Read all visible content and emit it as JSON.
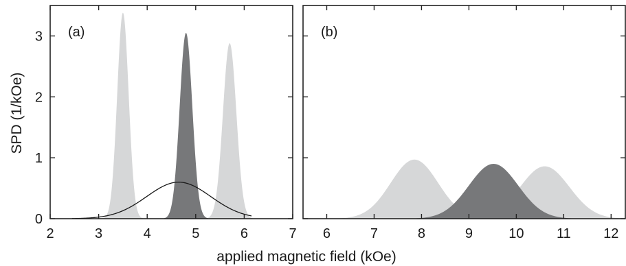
{
  "chart_data": {
    "type": "area",
    "xlabel": "applied magnetic field (kOe)",
    "ylabel": "SPD (1/kOe)",
    "colors": {
      "light": "#d6d7d8",
      "dark": "#77787a",
      "line": "#1a1a1a"
    },
    "panels": [
      {
        "label": "(a)",
        "xlim": [
          2,
          7
        ],
        "ylim": [
          0,
          3.5
        ],
        "xticks": [
          "2",
          "3",
          "4",
          "5",
          "6",
          "7"
        ],
        "yticks": [
          "0",
          "1",
          "2",
          "3"
        ],
        "series": [
          {
            "style": "fill-light",
            "center": 3.5,
            "sigma": 0.118,
            "peak": 3.38
          },
          {
            "style": "fill-light",
            "center": 5.7,
            "sigma": 0.138,
            "peak": 2.88
          },
          {
            "style": "fill-dark",
            "center": 4.8,
            "sigma": 0.13,
            "peak": 3.05
          },
          {
            "style": "line",
            "center": 4.65,
            "sigma": 0.66,
            "peak": 0.6,
            "xrange": [
              2.45,
              6.15
            ]
          }
        ]
      },
      {
        "label": "(b)",
        "xlim": [
          5.5,
          12.3
        ],
        "ylim": [
          0,
          3.5
        ],
        "xticks": [
          "6",
          "7",
          "8",
          "9",
          "10",
          "11",
          "12"
        ],
        "yticks": [
          "0",
          "1",
          "2",
          "3"
        ],
        "series": [
          {
            "style": "fill-light",
            "center": 7.85,
            "sigma": 0.5,
            "peak": 0.97
          },
          {
            "style": "fill-light",
            "center": 10.6,
            "sigma": 0.52,
            "peak": 0.86
          },
          {
            "style": "fill-dark",
            "center": 9.52,
            "sigma": 0.52,
            "peak": 0.9
          }
        ]
      }
    ]
  }
}
